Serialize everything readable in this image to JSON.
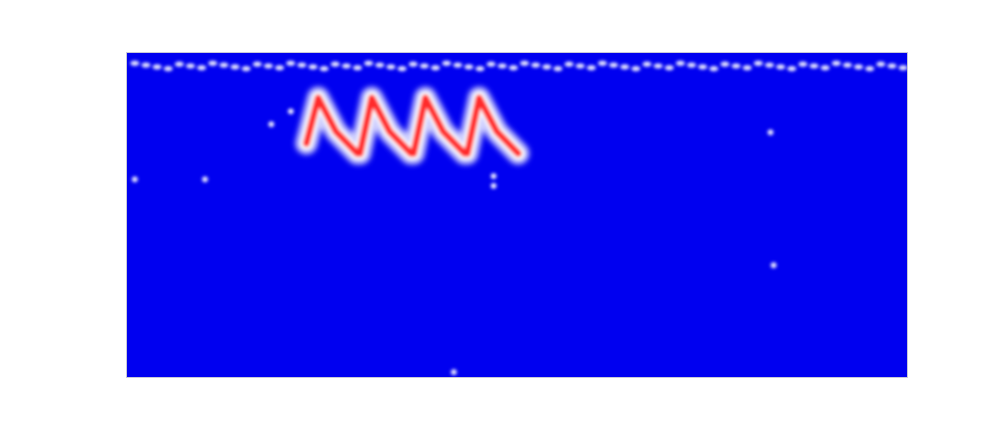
{
  "chart_data": {
    "type": "heatmap",
    "title": "",
    "xlabel": "",
    "ylabel": "",
    "axes_visible": false,
    "grid": false,
    "colors": {
      "background": "#0000f0",
      "low_intensity": "#ffffff",
      "high_intensity": "#ff2020",
      "halo": "#dcdcff"
    },
    "top_band": {
      "row": 0.04,
      "x_start": 0.01,
      "x_end": 0.995,
      "spots": 70,
      "intensity": "low"
    },
    "wave_trace": {
      "x_start": 0.23,
      "x_end": 0.505,
      "row_min": 0.12,
      "row_max": 0.31,
      "cycles": 4,
      "intensity": "high"
    },
    "isolated_spots": [
      {
        "x": 0.01,
        "y": 0.39,
        "intensity": "low"
      },
      {
        "x": 0.1,
        "y": 0.39,
        "intensity": "low"
      },
      {
        "x": 0.185,
        "y": 0.22,
        "intensity": "low"
      },
      {
        "x": 0.21,
        "y": 0.18,
        "intensity": "low"
      },
      {
        "x": 0.47,
        "y": 0.38,
        "intensity": "low"
      },
      {
        "x": 0.47,
        "y": 0.41,
        "intensity": "low"
      },
      {
        "x": 0.825,
        "y": 0.245,
        "intensity": "low"
      },
      {
        "x": 0.829,
        "y": 0.655,
        "intensity": "low"
      },
      {
        "x": 0.419,
        "y": 0.985,
        "intensity": "low"
      }
    ]
  }
}
